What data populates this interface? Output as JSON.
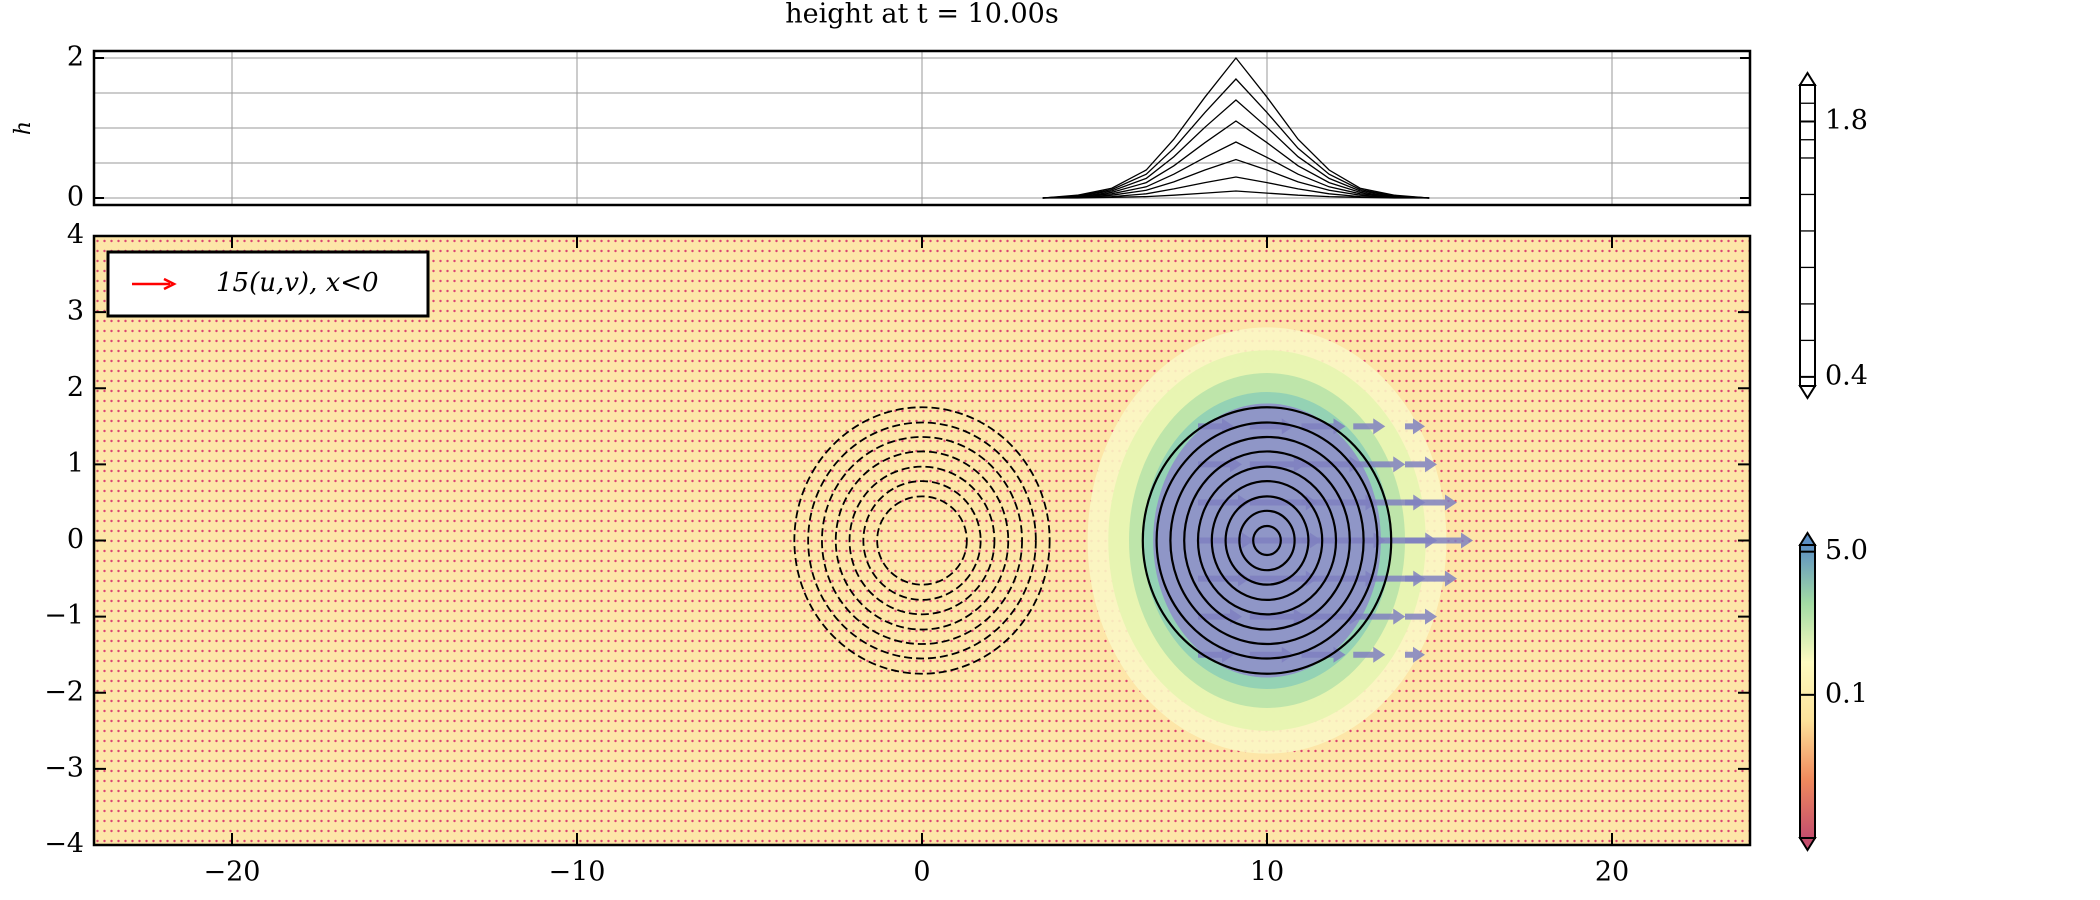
{
  "chart_data": [
    {
      "type": "line",
      "title": "height at t = 10.00s",
      "y_label": "h",
      "x": [
        3.5,
        4.5,
        5.5,
        6.5,
        7.3,
        8.2,
        9.1,
        10.0,
        10.9,
        11.8,
        12.7,
        13.7,
        14.7
      ],
      "series": [
        {
          "color": "#000000",
          "values": [
            0,
            0.04,
            0.14,
            0.4,
            0.84,
            1.44,
            2,
            1.44,
            0.84,
            0.4,
            0.14,
            0.04,
            0
          ]
        },
        {
          "color": "#000000",
          "values": [
            0,
            0.03,
            0.12,
            0.34,
            0.71,
            1.22,
            1.7,
            1.22,
            0.71,
            0.34,
            0.12,
            0.03,
            0
          ]
        },
        {
          "color": "#000000",
          "values": [
            0,
            0.03,
            0.1,
            0.28,
            0.59,
            1.01,
            1.4,
            1.01,
            0.59,
            0.28,
            0.1,
            0.03,
            0
          ]
        },
        {
          "color": "#000000",
          "values": [
            0,
            0.02,
            0.08,
            0.22,
            0.46,
            0.79,
            1.1,
            0.79,
            0.46,
            0.22,
            0.08,
            0.02,
            0
          ]
        },
        {
          "color": "#000000",
          "values": [
            0,
            0.02,
            0.06,
            0.16,
            0.34,
            0.58,
            0.8,
            0.58,
            0.34,
            0.16,
            0.06,
            0.02,
            0
          ]
        },
        {
          "color": "#000000",
          "values": [
            0,
            0.01,
            0.04,
            0.11,
            0.23,
            0.4,
            0.55,
            0.4,
            0.23,
            0.11,
            0.04,
            0.01,
            0
          ]
        },
        {
          "color": "#000000",
          "values": [
            0,
            0.01,
            0.02,
            0.06,
            0.13,
            0.22,
            0.3,
            0.22,
            0.13,
            0.06,
            0.02,
            0.01,
            0
          ]
        },
        {
          "color": "#000000",
          "values": [
            0,
            0,
            0.01,
            0.02,
            0.04,
            0.07,
            0.1,
            0.07,
            0.04,
            0.02,
            0.01,
            0,
            0
          ]
        }
      ],
      "xlim": [
        -24,
        24
      ],
      "ylim": [
        -0.1,
        2.1
      ],
      "yticks": [
        0,
        2
      ],
      "minor_yticks": [
        0.5,
        1,
        1.5
      ],
      "grid": true,
      "colorbar": {
        "ticks": [
          0.4,
          1.8
        ],
        "clim": [
          0.35,
          2.0
        ],
        "levels": [
          0.6,
          0.8,
          1.0,
          1.2,
          1.4,
          1.6,
          1.7,
          1.9
        ],
        "color": "#ffffff"
      }
    },
    {
      "type": "contour",
      "xlim": [
        -24,
        24
      ],
      "ylim": [
        -4,
        4
      ],
      "xticks": [
        {
          "value": -20,
          "label": "−20"
        },
        {
          "value": -10,
          "label": "−10"
        },
        0,
        10,
        20
      ],
      "yticks": [
        {
          "value": -4,
          "label": "−4"
        },
        {
          "value": -3,
          "label": "−3"
        },
        {
          "value": -2,
          "label": "−2"
        },
        {
          "value": -1,
          "label": "−1"
        },
        0,
        1,
        2,
        3,
        4
      ],
      "background": "#fde6a8",
      "marker_color": "#d6336c",
      "filled": {
        "center": [
          10,
          0
        ],
        "rx": [
          5.2,
          4.6,
          4.0,
          3.6,
          3.3
        ],
        "ry": [
          2.8,
          2.5,
          2.2,
          1.95,
          1.8
        ],
        "colors": [
          "#fbf6c4",
          "#e6f5b0",
          "#b9e3a8",
          "#8fcfb5",
          "#8e8fc9"
        ]
      },
      "contours": [
        {
          "style": "solid",
          "center": [
            10,
            0
          ],
          "rx": [
            3.6,
            3.2,
            2.8,
            2.4,
            2.0,
            1.6,
            1.2,
            0.8,
            0.4
          ],
          "ry": [
            1.75,
            1.55,
            1.36,
            1.17,
            0.97,
            0.78,
            0.58,
            0.39,
            0.19
          ]
        },
        {
          "style": "dashed",
          "center": [
            0,
            0
          ],
          "rx": [
            3.7,
            3.3,
            2.9,
            2.5,
            2.1,
            1.7,
            1.3
          ],
          "ry": [
            1.75,
            1.55,
            1.36,
            1.17,
            0.97,
            0.78,
            0.58
          ]
        }
      ],
      "quiver": {
        "x": [
          8,
          9.5,
          11,
          12.5,
          14
        ],
        "y": [
          -1.5,
          -1,
          -0.5,
          0,
          0.5,
          1,
          1.5
        ],
        "u": [
          [
            0.6,
            0.8,
            0.8,
            0.5,
            0.2
          ],
          [
            0.8,
            1.1,
            1.2,
            1,
            0.5
          ],
          [
            1,
            1.4,
            1.6,
            1.5,
            1.0
          ],
          [
            1.1,
            1.5,
            1.8,
            1.8,
            1.4
          ],
          [
            1,
            1.4,
            1.6,
            1.5,
            1.0
          ],
          [
            0.8,
            1.1,
            1.2,
            1,
            0.5
          ],
          [
            0.6,
            0.8,
            0.8,
            0.5,
            0.2
          ]
        ],
        "color": "#7f80c0"
      },
      "legend": {
        "label": "15(u,v), x<0",
        "color": "#ff0000",
        "location": "upper left"
      },
      "colorbar": {
        "ticks": [
          {
            "value": 5,
            "label": "5.0"
          },
          0.1
        ],
        "clim": [
          0.002,
          6
        ],
        "log": true,
        "colors": [
          "#c44e6d",
          "#f08a5d",
          "#fde29a",
          "#fdfbc0",
          "#a3dca4",
          "#5b8ec4"
        ]
      }
    }
  ]
}
